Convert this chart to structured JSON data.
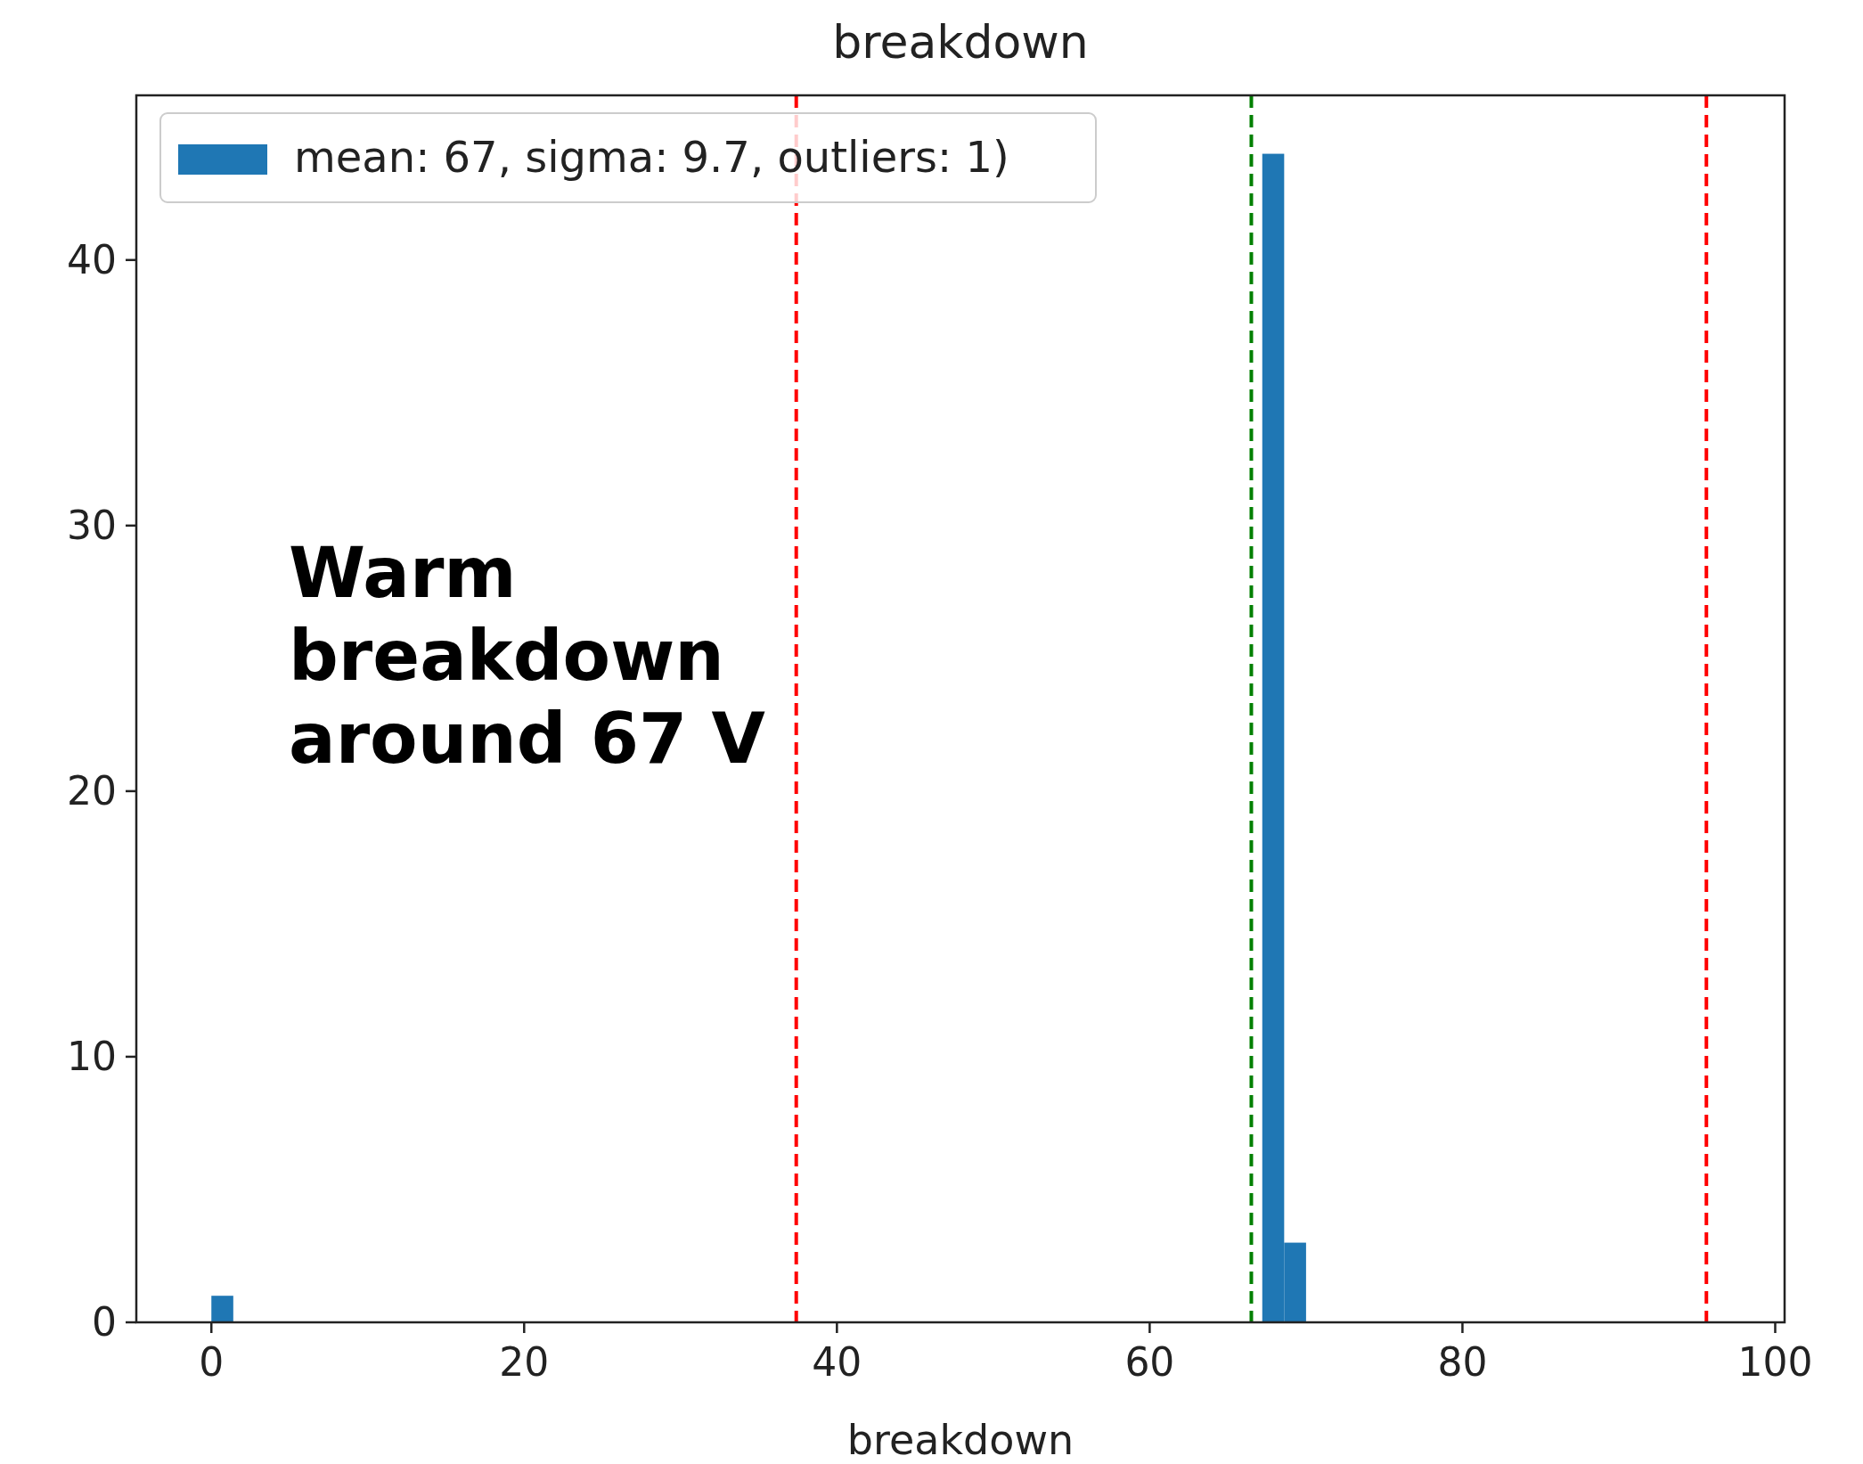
{
  "chart_data": {
    "type": "histogram",
    "title": "breakdown",
    "xlabel": "breakdown",
    "bins": [
      0,
      1.4,
      2.8,
      4.2,
      5.6,
      7,
      8.4,
      9.8,
      11.2,
      12.6,
      14,
      15.4,
      16.8,
      18.2,
      19.6,
      21,
      22.4,
      23.8,
      25.2,
      26.6,
      28,
      29.4,
      30.8,
      32.2,
      33.6,
      35,
      36.4,
      37.8,
      39.2,
      40.6,
      42,
      43.4,
      44.8,
      46.2,
      47.6,
      49,
      50.4,
      51.8,
      53.2,
      54.6,
      56,
      57.4,
      58.8,
      60.2,
      61.6,
      63,
      64.4,
      65.8,
      67.2,
      68.6,
      70
    ],
    "series": [
      {
        "name": "mean: 67, sigma: 9.7, outliers: 1)",
        "color": "#1f77b4",
        "values": [
          1,
          0,
          0,
          0,
          0,
          0,
          0,
          0,
          0,
          0,
          0,
          0,
          0,
          0,
          0,
          0,
          0,
          0,
          0,
          0,
          0,
          0,
          0,
          0,
          0,
          0,
          0,
          0,
          0,
          0,
          0,
          0,
          0,
          0,
          0,
          0,
          0,
          0,
          0,
          0,
          0,
          0,
          0,
          0,
          0,
          0,
          0,
          0,
          44,
          3
        ]
      }
    ],
    "xlim": [
      -4.8,
      100.6
    ],
    "xticks": [
      0,
      20,
      40,
      60,
      80,
      100
    ],
    "ylim": [
      0,
      46.2
    ],
    "yticks": [
      0,
      10,
      20,
      30,
      40
    ],
    "ref_lines": [
      {
        "axis": "x",
        "value": 37.4,
        "color": "#ff0000",
        "line_style": "dashed"
      },
      {
        "axis": "x",
        "value": 66.5,
        "color": "#008000",
        "line_style": "dashed"
      },
      {
        "axis": "x",
        "value": 95.6,
        "color": "#ff0000",
        "line_style": "dashed"
      }
    ],
    "legend": "top left",
    "grid": false,
    "annotations": [
      "Warm breakdown around 67 V"
    ]
  }
}
